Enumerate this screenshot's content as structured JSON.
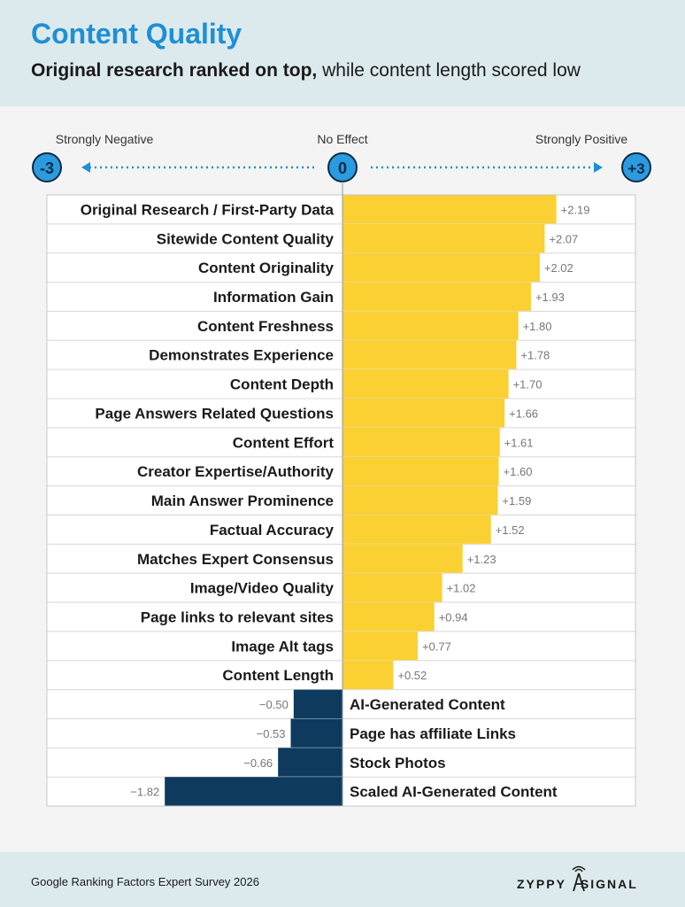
{
  "header": {
    "title": "Content Quality",
    "subtitle_bold": "Original research ranked on top,",
    "subtitle_rest": " while content length scored low"
  },
  "scale": {
    "left_label": "Strongly Negative",
    "center_label": "No Effect",
    "right_label": "Strongly Positive",
    "left_value": "-3",
    "center_value": "0",
    "right_value": "+3"
  },
  "footer": {
    "source": "Google Ranking Factors Expert Survey 2026",
    "logo_part1": "ZYPPY",
    "logo_part2": "SIGNAL"
  },
  "colors": {
    "positive": "#fbd032",
    "negative": "#0e3a5e",
    "accent": "#1e8fd5"
  },
  "chart_data": {
    "type": "bar",
    "orientation": "horizontal",
    "xlim": [
      -3,
      3
    ],
    "categories": [
      "Original Research / First-Party Data",
      "Sitewide Content Quality",
      "Content Originality",
      "Information Gain",
      "Content Freshness",
      "Demonstrates Experience",
      "Content Depth",
      "Page Answers Related Questions",
      "Content Effort",
      "Creator Expertise/Authority",
      "Main Answer Prominence",
      "Factual Accuracy",
      "Matches Expert Consensus",
      "Image/Video Quality",
      "Page links to relevant sites",
      "Image Alt tags",
      "Content Length",
      "AI-Generated Content",
      "Page has affiliate Links",
      "Stock Photos",
      "Scaled AI-Generated Content"
    ],
    "values": [
      2.19,
      2.07,
      2.02,
      1.93,
      1.8,
      1.78,
      1.7,
      1.66,
      1.61,
      1.6,
      1.59,
      1.52,
      1.23,
      1.02,
      0.94,
      0.77,
      0.52,
      -0.5,
      -0.53,
      -0.66,
      -1.82
    ],
    "value_labels": [
      "+2.19",
      "+2.07",
      "+2.02",
      "+1.93",
      "+1.80",
      "+1.78",
      "+1.70",
      "+1.66",
      "+1.61",
      "+1.60",
      "+1.59",
      "+1.52",
      "+1.23",
      "+1.02",
      "+0.94",
      "+0.77",
      "+0.52",
      "−0.50",
      "−0.53",
      "−0.66",
      "−1.82"
    ]
  }
}
